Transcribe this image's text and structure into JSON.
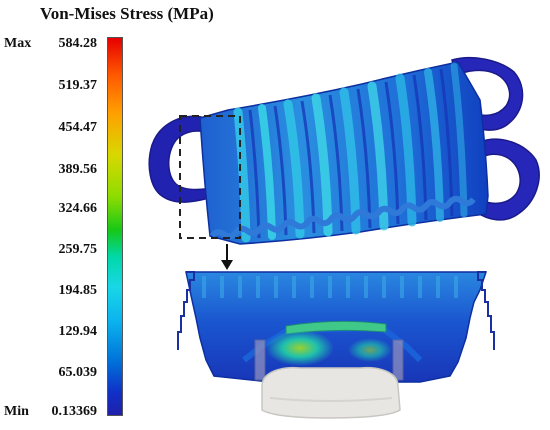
{
  "legend": {
    "title": "Von-Mises Stress (MPa)",
    "max_word": "Max",
    "min_word": "Min",
    "values": [
      "584.28",
      "519.37",
      "454.47",
      "389.56",
      "324.66",
      "259.75",
      "194.85",
      "129.94",
      "65.039",
      "0.13369"
    ]
  },
  "colors": {
    "max": "#e60000",
    "high": "#ffa000",
    "mid": "#16c816",
    "midlow": "#19d7e6",
    "low": "#0070d8",
    "min": "#2020aa"
  }
}
